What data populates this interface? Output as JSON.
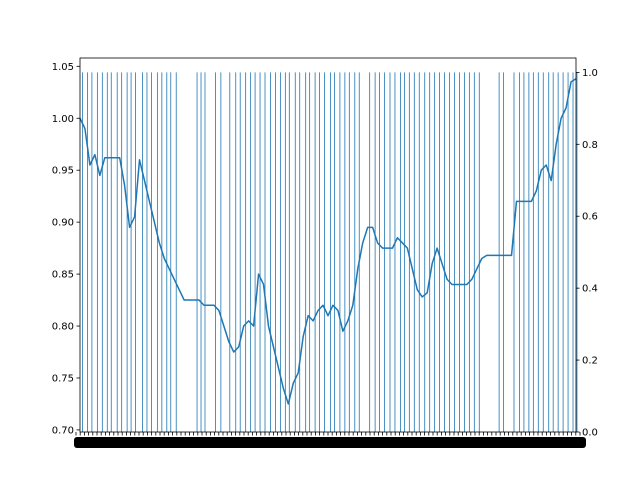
{
  "chart_data": {
    "type": "line",
    "title": "",
    "xlabel": "",
    "ylabel": "",
    "y2label": "",
    "grid": false,
    "colors": {
      "series": "#1f77b4",
      "axes": "#000000",
      "background": "#ffffff"
    },
    "x_tick_labels": "dense overlapping tick labels along bottom axis (illegible)",
    "left_axis": {
      "ylim": [
        0.698,
        1.058
      ],
      "ticks": [
        0.7,
        0.75,
        0.8,
        0.85,
        0.9,
        0.95,
        1.0,
        1.05
      ],
      "tick_labels": [
        "0.70",
        "0.75",
        "0.80",
        "0.85",
        "0.90",
        "0.95",
        "1.00",
        "1.05"
      ]
    },
    "right_axis": {
      "ylim": [
        0.0,
        1.04
      ],
      "ticks": [
        0.0,
        0.2,
        0.4,
        0.6,
        0.8,
        1.0
      ],
      "tick_labels": [
        "0.0",
        "0.2",
        "0.4",
        "0.6",
        "0.8",
        "1.0"
      ]
    },
    "series": [
      {
        "type": "line",
        "axis": "left",
        "x": [
          0,
          1,
          2,
          3,
          4,
          5,
          6,
          7,
          8,
          9,
          10,
          11,
          12,
          13,
          14,
          15,
          16,
          17,
          18,
          19,
          20,
          21,
          22,
          23,
          24,
          25,
          26,
          27,
          28,
          29,
          30,
          31,
          32,
          33,
          34,
          35,
          36,
          37,
          38,
          39,
          40,
          41,
          42,
          43,
          44,
          45,
          46,
          47,
          48,
          49,
          50,
          51,
          52,
          53,
          54,
          55,
          56,
          57,
          58,
          59,
          60,
          61,
          62,
          63,
          64,
          65,
          66,
          67,
          68,
          69,
          70,
          71,
          72,
          73,
          74,
          75,
          76,
          77,
          78,
          79,
          80,
          81,
          82,
          83,
          84,
          85,
          86,
          87,
          88,
          89,
          90,
          91,
          92,
          93,
          94,
          95,
          96,
          97,
          98,
          99,
          100
        ],
        "y": [
          1.0,
          0.99,
          0.955,
          0.965,
          0.945,
          0.962,
          0.962,
          0.962,
          0.962,
          0.935,
          0.895,
          0.905,
          0.96,
          0.94,
          0.92,
          0.9,
          0.88,
          0.865,
          0.855,
          0.845,
          0.835,
          0.825,
          0.825,
          0.825,
          0.825,
          0.82,
          0.82,
          0.82,
          0.815,
          0.8,
          0.785,
          0.775,
          0.78,
          0.8,
          0.805,
          0.8,
          0.85,
          0.84,
          0.8,
          0.78,
          0.76,
          0.74,
          0.725,
          0.745,
          0.755,
          0.79,
          0.81,
          0.805,
          0.815,
          0.82,
          0.81,
          0.82,
          0.815,
          0.795,
          0.805,
          0.82,
          0.855,
          0.88,
          0.895,
          0.895,
          0.88,
          0.875,
          0.875,
          0.875,
          0.885,
          0.88,
          0.875,
          0.855,
          0.835,
          0.828,
          0.832,
          0.86,
          0.875,
          0.86,
          0.845,
          0.84,
          0.84,
          0.84,
          0.84,
          0.845,
          0.855,
          0.865,
          0.868,
          0.868,
          0.868,
          0.868,
          0.868,
          0.868,
          0.92,
          0.92,
          0.92,
          0.92,
          0.93,
          0.95,
          0.955,
          0.94,
          0.975,
          1.0,
          1.01,
          1.035,
          1.038
        ]
      }
    ],
    "vertical_lines": {
      "axis": "right",
      "height": 1.0,
      "x": [
        0.5,
        1.5,
        2.4,
        3.5,
        4.5,
        5.5,
        6.3,
        7.5,
        8.4,
        9.5,
        10.3,
        11.2,
        12.6,
        13.5,
        14.4,
        15.6,
        16.5,
        17.5,
        18.3,
        19.4,
        23.6,
        24.4,
        25.2,
        27.3,
        28.4,
        30.2,
        31.4,
        32.3,
        33.4,
        34.4,
        35.3,
        36.3,
        37.3,
        38.4,
        39.4,
        40.4,
        41.4,
        42.2,
        43.4,
        44.3,
        45.5,
        46.3,
        47.4,
        48.3,
        49.3,
        50.5,
        51.3,
        52.4,
        53.4,
        54.3,
        55.4,
        56.3,
        58.4,
        59.5,
        60.4,
        61.4,
        62.5,
        63.5,
        64.6,
        65.4,
        66.4,
        67.4,
        68.4,
        69.5,
        70.5,
        71.5,
        72.5,
        73.5,
        74.5,
        75.5,
        76.5,
        77.5,
        78.5,
        79.5,
        80.5,
        84.5,
        85.4,
        87.5,
        88.6,
        89.5,
        90.5,
        91.4,
        92.4,
        93.4,
        94.5,
        95.4,
        96.4,
        97.4,
        98.4,
        99.4,
        100.2
      ]
    }
  }
}
